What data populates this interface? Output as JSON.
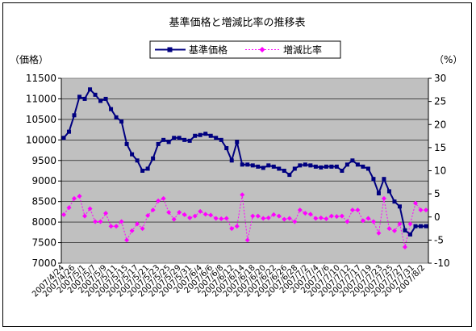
{
  "chart_data": {
    "type": "line",
    "title": "基準価格と増減比率の推移表",
    "y_left_label": "（価格）",
    "y_right_label": "（%）",
    "y_left_range": [
      7000,
      11500
    ],
    "y_left_ticks": [
      7000,
      7500,
      8000,
      8500,
      9000,
      9500,
      10000,
      10500,
      11000,
      11500
    ],
    "y_right_range": [
      -10,
      30
    ],
    "y_right_ticks": [
      -10,
      -5,
      0,
      5,
      10,
      15,
      20,
      25,
      30
    ],
    "legend_position": "top",
    "plot_background": "#c0c0c0",
    "x_tick_labels": [
      "2007/4/24",
      "2007/4/26",
      "2007/5/1",
      "2007/5/7",
      "2007/5/9",
      "2007/5/11",
      "2007/5/15",
      "2007/5/17",
      "2007/5/21",
      "2007/5/23",
      "2007/5/25",
      "2007/5/29",
      "2007/5/31",
      "2007/6/4",
      "2007/6/6",
      "2007/6/8",
      "2007/6/12",
      "2007/6/14",
      "2007/6/18",
      "2007/6/20",
      "2007/6/22",
      "2007/6/26",
      "2007/6/28",
      "2007/7/2",
      "2007/7/4",
      "2007/7/6",
      "2007/7/10",
      "2007/7/12",
      "2007/7/17",
      "2007/7/19",
      "2007/7/23",
      "2007/7/25",
      "2007/7/27",
      "2007/7/31",
      "2007/8/2"
    ],
    "series": [
      {
        "name": "基準価格",
        "axis": "left",
        "color": "#000080",
        "marker": "square",
        "values": [
          10050,
          10200,
          10600,
          11050,
          11000,
          11230,
          11100,
          10950,
          11000,
          10750,
          10550,
          10450,
          9900,
          9650,
          9500,
          9250,
          9300,
          9550,
          9900,
          10000,
          9950,
          10050,
          10050,
          10000,
          9980,
          10100,
          10120,
          10150,
          10100,
          10050,
          10000,
          9800,
          9500,
          9950,
          9400,
          9400,
          9380,
          9350,
          9320,
          9380,
          9350,
          9300,
          9250,
          9150,
          9300,
          9380,
          9400,
          9380,
          9350,
          9330,
          9350,
          9350,
          9350,
          9250,
          9400,
          9500,
          9400,
          9350,
          9300,
          9050,
          8700,
          9050,
          8750,
          8500,
          8380,
          7800,
          7700,
          7900,
          7900,
          7900
        ]
      },
      {
        "name": "増減比率",
        "axis": "right",
        "color": "#ff00ff",
        "marker": "diamond",
        "values": [
          0.5,
          2.0,
          4.0,
          4.5,
          0.2,
          1.8,
          -1.0,
          -1.0,
          0.8,
          -2.0,
          -2.0,
          -1.0,
          -5.0,
          -3.0,
          -1.5,
          -2.5,
          0.3,
          1.5,
          3.5,
          4.0,
          1.0,
          -0.5,
          1.0,
          0.5,
          -0.2,
          0.2,
          1.2,
          0.6,
          0.4,
          -0.3,
          -0.4,
          -0.3,
          -2.5,
          -2.0,
          4.8,
          -5.0,
          0.2,
          0.2,
          -0.3,
          -0.2,
          0.5,
          0.2,
          -0.5,
          -0.3,
          -1.0,
          1.5,
          0.8,
          0.6,
          -0.3,
          -0.2,
          -0.4,
          0.2,
          0.1,
          0.2,
          -1.0,
          1.5,
          1.5,
          -0.8,
          -0.3,
          -1.0,
          -3.5,
          4.0,
          -2.5,
          -3.0,
          -1.5,
          -6.5,
          -1.5,
          3.0,
          1.5,
          1.5
        ]
      }
    ]
  }
}
